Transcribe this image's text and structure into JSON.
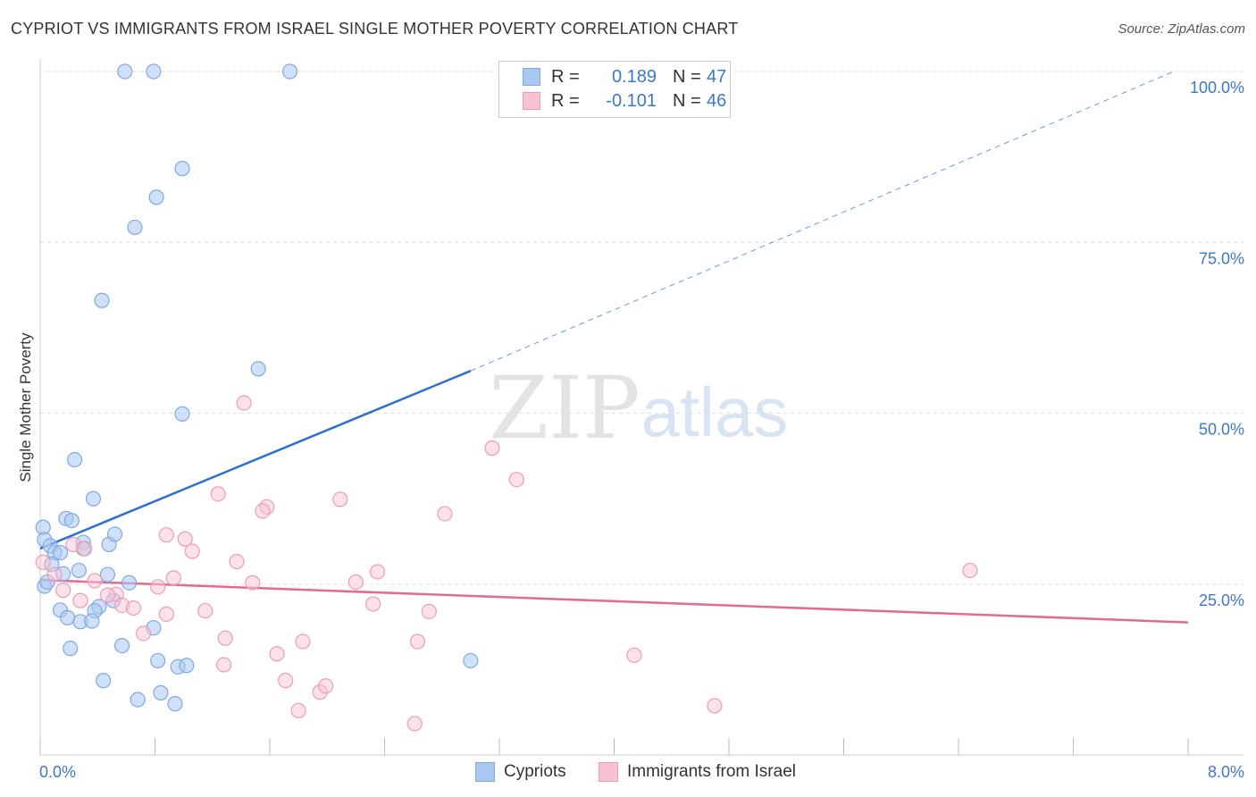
{
  "title": "CYPRIOT VS IMMIGRANTS FROM ISRAEL SINGLE MOTHER POVERTY CORRELATION CHART",
  "source": "Source: ZipAtlas.com",
  "watermark": {
    "zip": "ZIP",
    "atlas": "atlas"
  },
  "colors": {
    "blue_fill": "#a9c8f0",
    "blue_stroke": "#7fa9e3",
    "blue_line": "#2b6fd1",
    "pink_fill": "#f7c3d3",
    "pink_stroke": "#ee9bb5",
    "pink_line": "#e36a94",
    "accent_text": "#3a78c9",
    "grid": "#dddddd"
  },
  "legend": {
    "r_label": "R =",
    "n_label": "N =",
    "cypriots": {
      "r": "0.189",
      "n": "47"
    },
    "israel": {
      "r": "-0.101",
      "n": "46"
    }
  },
  "chart_data": {
    "type": "scatter",
    "title": "CYPRIOT VS IMMIGRANTS FROM ISRAEL SINGLE MOTHER POVERTY CORRELATION CHART",
    "xlabel": "",
    "ylabel": "Single Mother Poverty",
    "xlim": [
      0,
      8
    ],
    "ylim": [
      0,
      100
    ],
    "x_tick_labels": [
      "0.0%",
      "8.0%"
    ],
    "y_tick_labels": [
      "25.0%",
      "50.0%",
      "75.0%",
      "100.0%"
    ],
    "y_ticks": [
      25,
      50,
      75,
      100
    ],
    "grid": true,
    "legend_position": "bottom-center",
    "series": [
      {
        "name": "Cypriots",
        "color": "#a9c8f0",
        "points": [
          [
            0.59,
            100
          ],
          [
            0.79,
            100
          ],
          [
            1.74,
            100
          ],
          [
            0.99,
            85.8
          ],
          [
            0.81,
            81.6
          ],
          [
            0.66,
            77.2
          ],
          [
            0.43,
            66.5
          ],
          [
            1.52,
            56.5
          ],
          [
            0.99,
            49.9
          ],
          [
            0.24,
            43.2
          ],
          [
            0.37,
            37.5
          ],
          [
            0.02,
            33.3
          ],
          [
            0.18,
            34.6
          ],
          [
            0.22,
            34.3
          ],
          [
            0.03,
            31.5
          ],
          [
            0.07,
            30.6
          ],
          [
            0.3,
            31.1
          ],
          [
            0.3,
            30.2
          ],
          [
            0.48,
            30.8
          ],
          [
            0.52,
            32.3
          ],
          [
            0.1,
            29.6
          ],
          [
            0.14,
            29.6
          ],
          [
            0.08,
            27.9
          ],
          [
            0.27,
            27.0
          ],
          [
            0.47,
            26.4
          ],
          [
            0.62,
            25.2
          ],
          [
            0.16,
            26.5
          ],
          [
            0.03,
            24.7
          ],
          [
            0.05,
            25.3
          ],
          [
            0.14,
            21.2
          ],
          [
            0.41,
            21.7
          ],
          [
            0.51,
            22.6
          ],
          [
            0.38,
            21.1
          ],
          [
            0.19,
            20.1
          ],
          [
            0.28,
            19.5
          ],
          [
            0.36,
            19.6
          ],
          [
            0.79,
            18.6
          ],
          [
            0.21,
            15.6
          ],
          [
            0.82,
            13.8
          ],
          [
            0.96,
            12.9
          ],
          [
            1.02,
            13.1
          ],
          [
            3.0,
            13.8
          ],
          [
            0.44,
            10.9
          ],
          [
            0.68,
            8.1
          ],
          [
            0.84,
            9.1
          ],
          [
            0.94,
            7.5
          ],
          [
            0.57,
            16.0
          ]
        ]
      },
      {
        "name": "Immigrants from Israel",
        "color": "#f7c3d3",
        "points": [
          [
            1.42,
            51.5
          ],
          [
            3.15,
            44.9
          ],
          [
            3.32,
            40.3
          ],
          [
            1.24,
            38.2
          ],
          [
            2.09,
            37.4
          ],
          [
            1.58,
            36.3
          ],
          [
            1.55,
            35.7
          ],
          [
            2.82,
            35.3
          ],
          [
            0.88,
            32.2
          ],
          [
            1.01,
            31.6
          ],
          [
            0.23,
            30.8
          ],
          [
            0.31,
            30.2
          ],
          [
            1.06,
            29.8
          ],
          [
            1.37,
            28.3
          ],
          [
            0.02,
            28.2
          ],
          [
            2.35,
            26.8
          ],
          [
            0.1,
            26.4
          ],
          [
            0.93,
            25.9
          ],
          [
            0.38,
            25.5
          ],
          [
            1.48,
            25.2
          ],
          [
            2.2,
            25.3
          ],
          [
            0.82,
            24.6
          ],
          [
            0.16,
            24.1
          ],
          [
            0.53,
            23.5
          ],
          [
            0.47,
            23.4
          ],
          [
            0.28,
            22.6
          ],
          [
            0.57,
            21.9
          ],
          [
            0.65,
            21.5
          ],
          [
            2.32,
            22.1
          ],
          [
            1.15,
            21.1
          ],
          [
            2.71,
            21.0
          ],
          [
            0.88,
            20.6
          ],
          [
            0.72,
            17.8
          ],
          [
            1.29,
            17.1
          ],
          [
            1.83,
            16.6
          ],
          [
            2.63,
            16.6
          ],
          [
            1.65,
            14.8
          ],
          [
            4.14,
            14.6
          ],
          [
            1.28,
            13.2
          ],
          [
            1.71,
            10.9
          ],
          [
            1.95,
            9.2
          ],
          [
            1.99,
            10.1
          ],
          [
            1.8,
            6.5
          ],
          [
            2.61,
            4.6
          ],
          [
            4.7,
            7.2
          ],
          [
            6.48,
            27.0
          ]
        ]
      }
    ],
    "trend_lines": [
      {
        "name": "Cypriots",
        "x0": 0.0,
        "y0": 30.2,
        "x1": 3.0,
        "y1": 56.2,
        "dashed_to_x": 7.9,
        "dashed_to_y": 100.0
      },
      {
        "name": "Immigrants from Israel",
        "x0": 0.0,
        "y0": 25.6,
        "x1": 8.0,
        "y1": 19.4
      }
    ]
  }
}
